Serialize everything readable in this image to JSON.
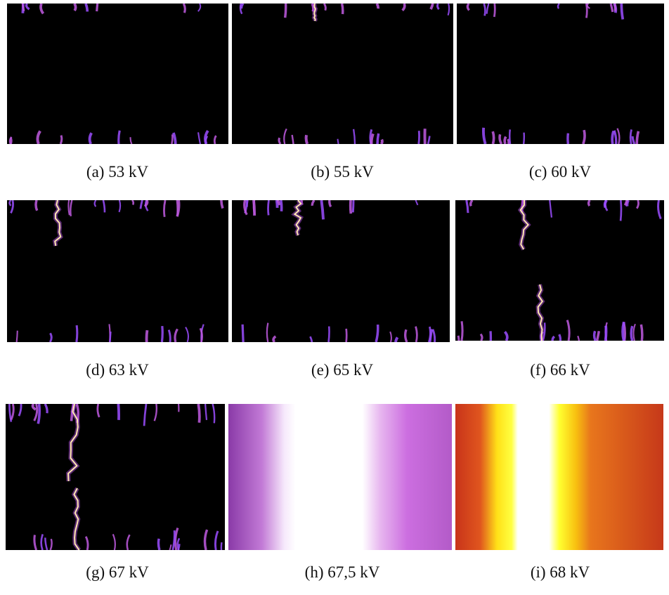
{
  "figure": {
    "panels": [
      {
        "caption": "(a) 53 kV"
      },
      {
        "caption": "(b) 55 kV"
      },
      {
        "caption": "(c) 60 kV"
      },
      {
        "caption": "(d) 63 kV"
      },
      {
        "caption": "(e) 65 kV"
      },
      {
        "caption": "(f) 66 kV"
      },
      {
        "caption": "(g) 67 kV"
      },
      {
        "caption": "(h) 67,5 kV"
      },
      {
        "caption": "(i) 68 kV"
      }
    ]
  }
}
